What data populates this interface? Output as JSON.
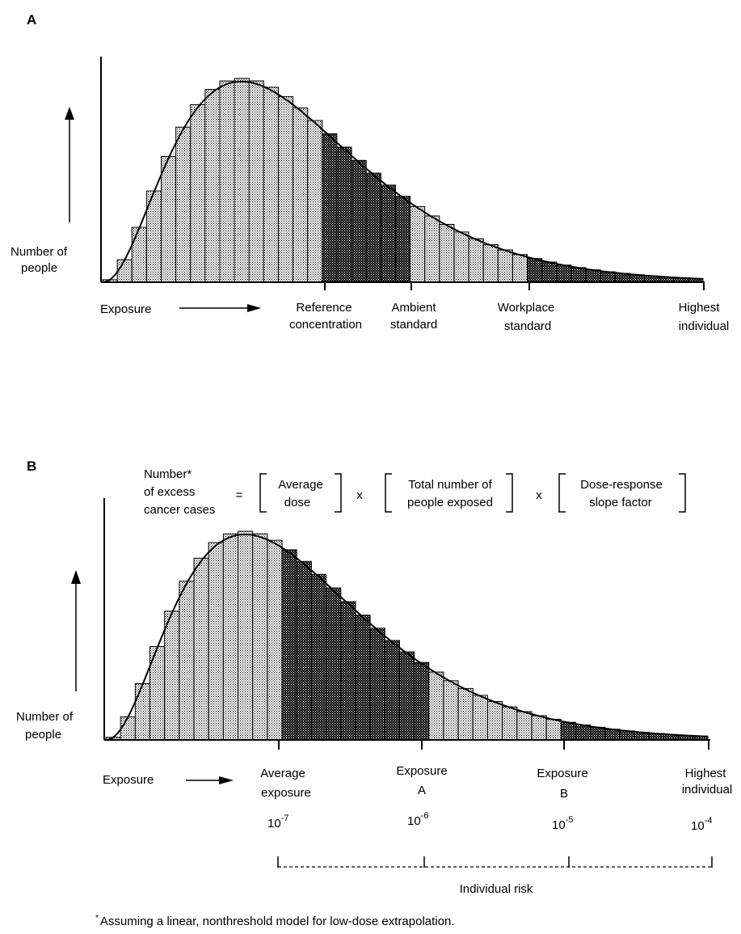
{
  "panel_a": {
    "letter": "A",
    "ylabel_line1": "Number of",
    "ylabel_line2": "people",
    "xlabel": "Exposure",
    "markers": [
      {
        "line1": "Reference",
        "line2": "concentration"
      },
      {
        "line1": "Ambient",
        "line2": "standard"
      },
      {
        "line1": "Workplace",
        "line2": "standard"
      },
      {
        "line1": "Highest",
        "line2": "individual"
      }
    ]
  },
  "panel_b": {
    "letter": "B",
    "ylabel_line1": "Number of",
    "ylabel_line2": "people",
    "xlabel": "Exposure",
    "equation": {
      "lhs_line1": "Number*",
      "lhs_line2": "of excess",
      "lhs_line3": "cancer cases",
      "equals": "=",
      "term1_line1": "Average",
      "term1_line2": "dose",
      "times1": "x",
      "term2_line1": "Total number of",
      "term2_line2": "people exposed",
      "times2": "x",
      "term3_line1": "Dose-response",
      "term3_line2": "slope factor"
    },
    "markers": [
      {
        "line1": "Average",
        "line2": "exposure",
        "risk_base": "10",
        "risk_exp": "-7"
      },
      {
        "line1": "Exposure",
        "line2": "A",
        "risk_base": "10",
        "risk_exp": "-6"
      },
      {
        "line1": "Exposure",
        "line2": "B",
        "risk_base": "10",
        "risk_exp": "-5"
      },
      {
        "line1": "Highest",
        "line2": "individual",
        "risk_base": "10",
        "risk_exp": "-4"
      }
    ],
    "risk_label": "Individual risk"
  },
  "footnote": {
    "star": "*",
    "text": "Assuming a linear, nonthreshold model for low-dose extrapolation."
  },
  "colors": {
    "ink": "#000000",
    "background": "#ffffff"
  }
}
